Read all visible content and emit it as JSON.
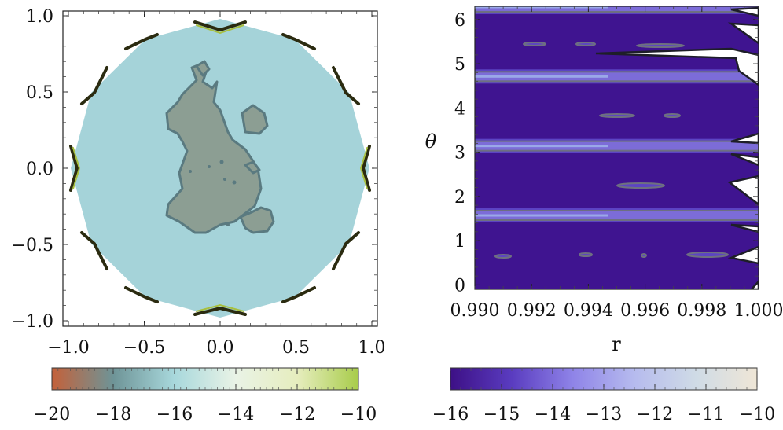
{
  "chart_data": [
    {
      "type": "contour",
      "title": "",
      "xlabel": "",
      "ylabel": "",
      "xlim": [
        -1.0,
        1.0
      ],
      "ylim": [
        -1.0,
        1.0
      ],
      "x_ticks": [
        -1.0,
        -0.5,
        0.0,
        0.5,
        1.0
      ],
      "x_tick_labels": [
        "−1.0",
        "−0.5",
        "0.0",
        "0.5",
        "1.0"
      ],
      "y_ticks": [
        -1.0,
        -0.5,
        0.0,
        0.5,
        1.0
      ],
      "y_tick_labels": [
        "−1.0",
        "−0.5",
        "0.0",
        "0.5",
        "1.0"
      ],
      "domain": "unit disk",
      "colors": {
        "background": "#a5d3d9",
        "low_region": "#8c9e93",
        "low_edge": "#5a7a80",
        "edge_high": "#7a8a10"
      },
      "colorbar": {
        "range": [
          -20,
          -10
        ],
        "ticks": [
          -20,
          -18,
          -16,
          -14,
          -12,
          -10
        ],
        "tick_labels": [
          "−20",
          "−18",
          "−16",
          "−14",
          "−12",
          "−10"
        ],
        "colors": [
          "#c4613a",
          "#6e9497",
          "#a8d8dc",
          "#e9f3e6",
          "#e6edbe",
          "#a8cc4a"
        ]
      }
    },
    {
      "type": "contour",
      "title": "",
      "xlabel": "r",
      "ylabel": "θ",
      "xlim": [
        0.99,
        1.0
      ],
      "ylim": [
        -0.1,
        6.3
      ],
      "x_ticks": [
        0.99,
        0.992,
        0.994,
        0.996,
        0.998,
        1.0
      ],
      "x_tick_labels": [
        "0.990",
        "0.992",
        "0.994",
        "0.996",
        "0.998",
        "1.000"
      ],
      "y_ticks": [
        0,
        1,
        2,
        3,
        4,
        5,
        6
      ],
      "y_tick_labels": [
        "0",
        "1",
        "2",
        "3",
        "4",
        "5",
        "6"
      ],
      "bands_theta": [
        1.5708,
        3.1416,
        4.7124,
        6.2832
      ],
      "colors": {
        "background": "#3f1490",
        "band": "#7c6cd8",
        "band_edge": "#6e7080",
        "wedge": "#ffffff"
      },
      "colorbar": {
        "range": [
          -16,
          -10
        ],
        "ticks": [
          -16,
          -15,
          -14,
          -13,
          -12,
          -11,
          -10
        ],
        "tick_labels": [
          "−16",
          "−15",
          "−14",
          "−13",
          "−12",
          "−11",
          "−10"
        ],
        "colors": [
          "#3d1086",
          "#5a3cc0",
          "#8f84e8",
          "#b6bbee",
          "#cfdbe6",
          "#efe6d6"
        ]
      }
    }
  ]
}
